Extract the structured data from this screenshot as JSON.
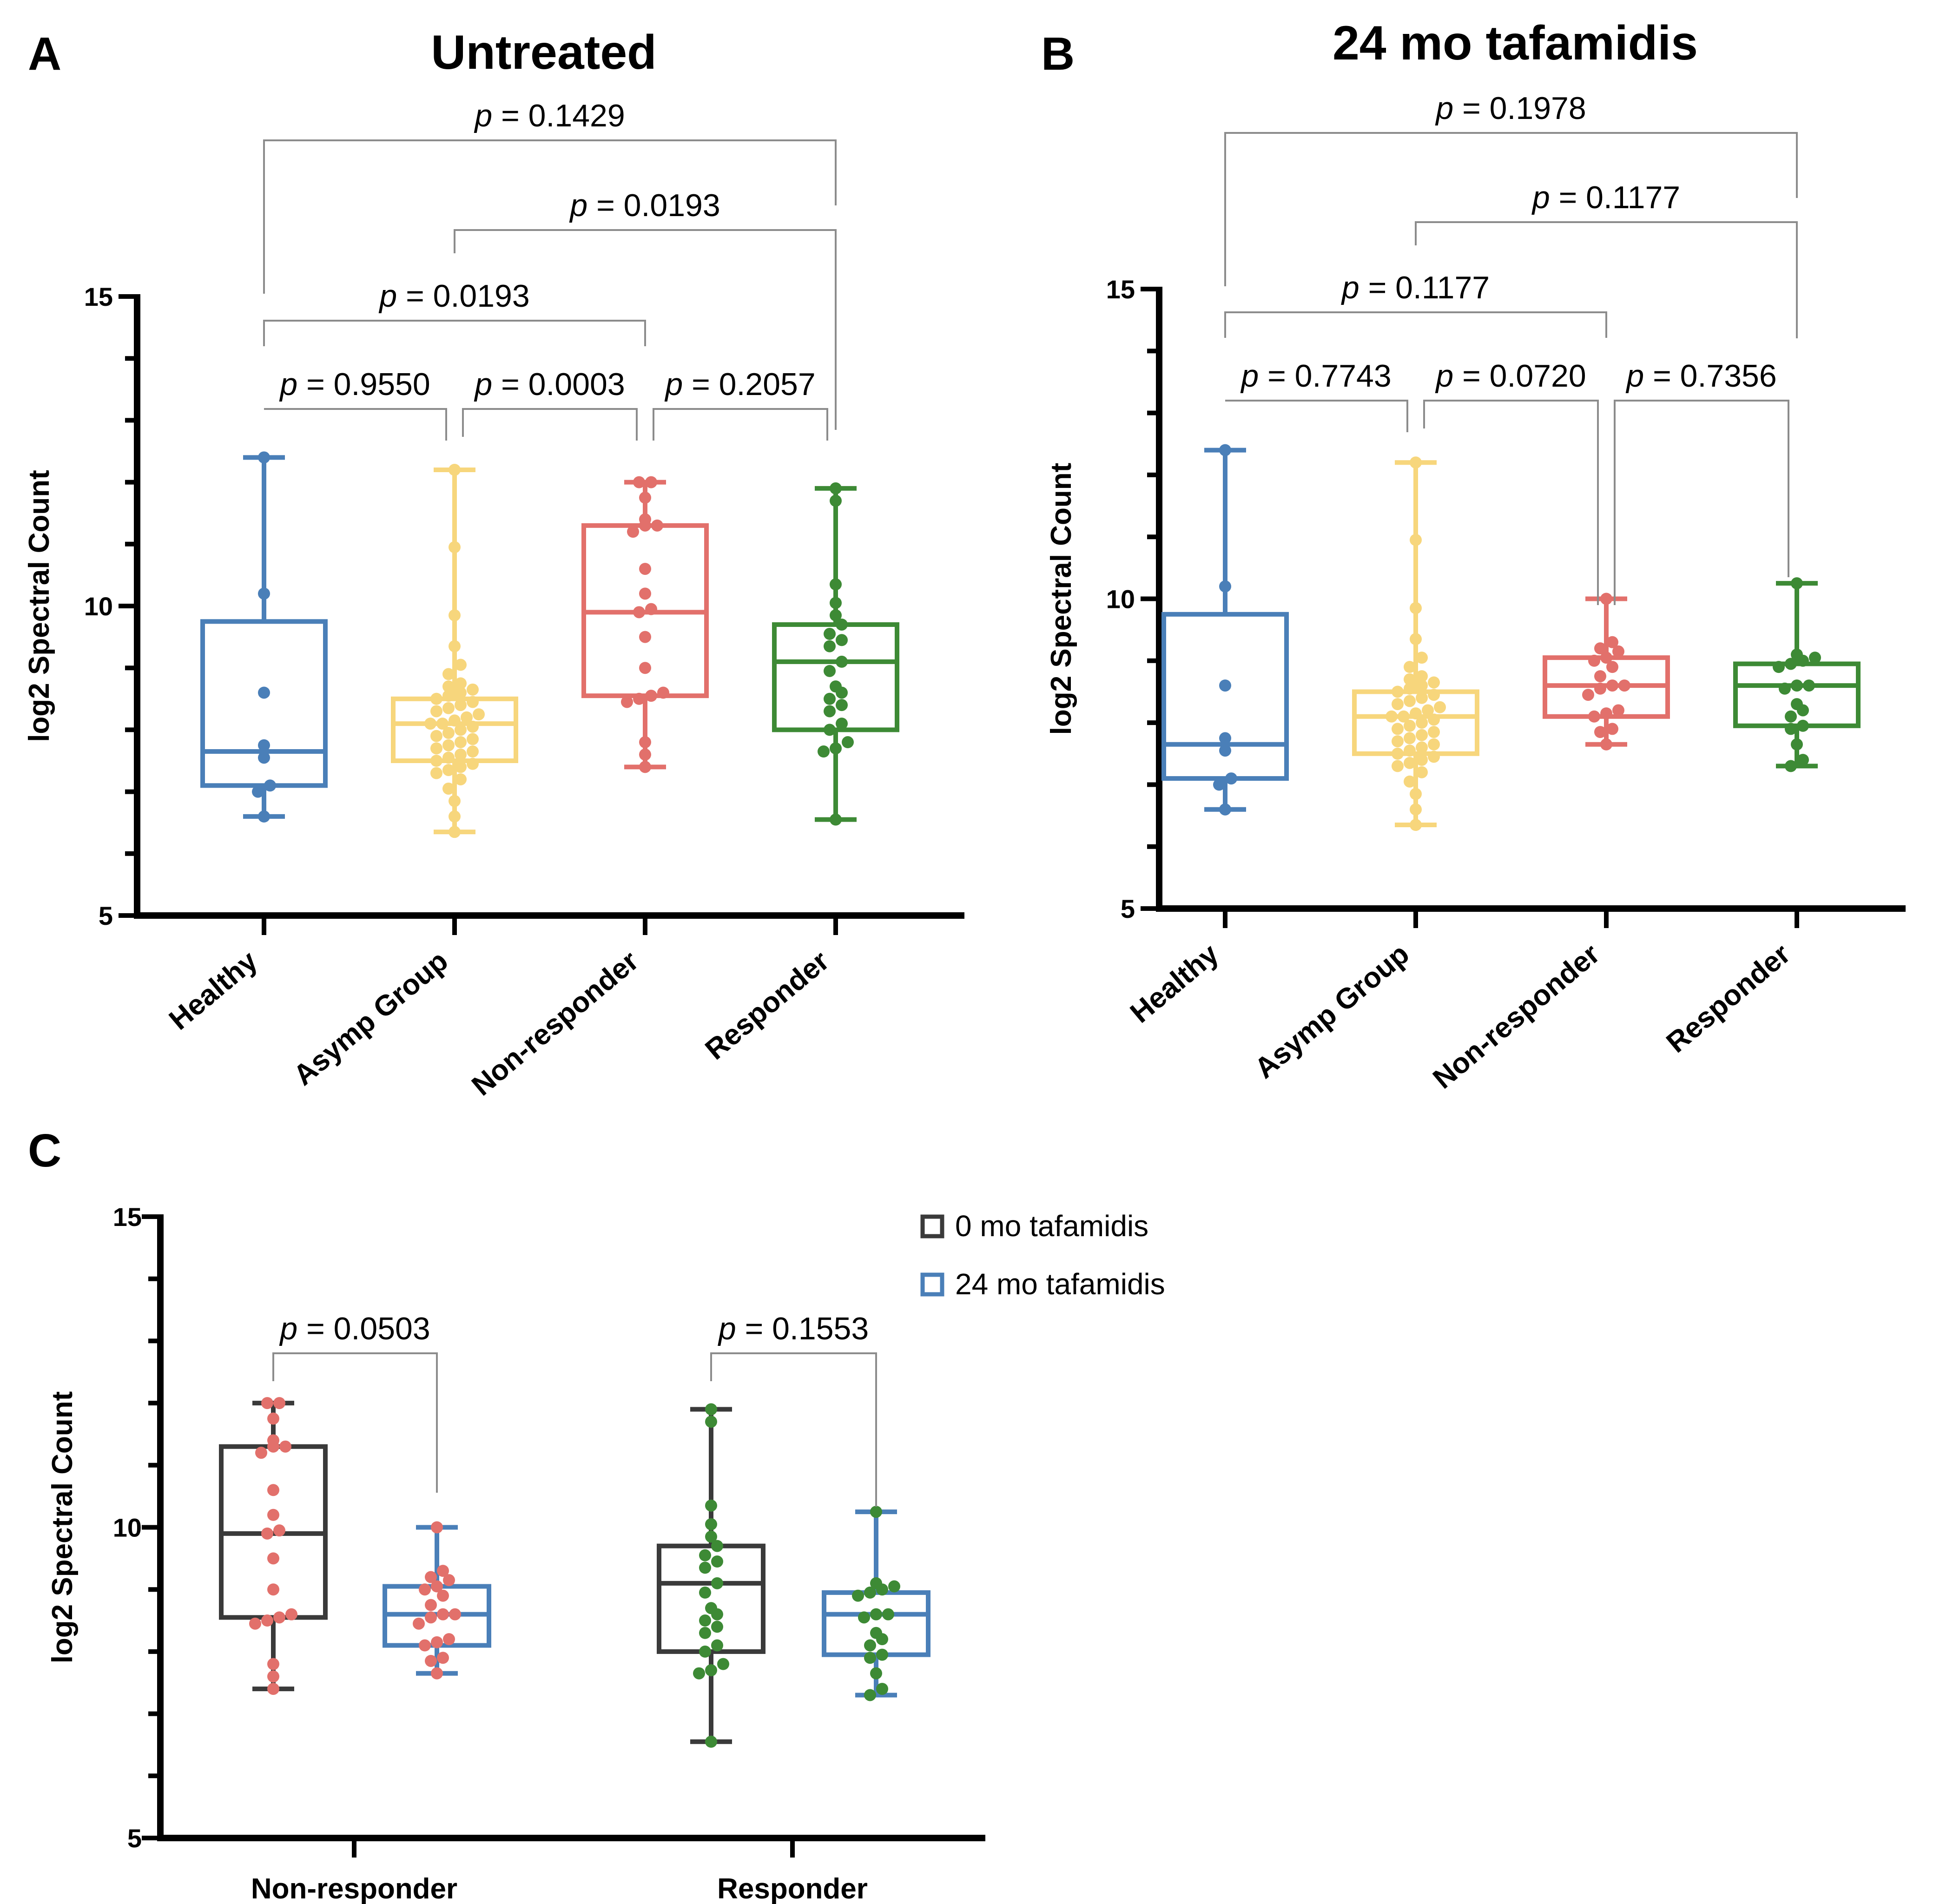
{
  "figure": {
    "panel_labels": [
      "A",
      "B",
      "C"
    ]
  },
  "colors": {
    "healthy": "#4a7fb8",
    "asymp": "#f7d67c",
    "nonresponder": "#e2706b",
    "responder": "#3d8a35",
    "dark": "#3a3a3a",
    "axis": "#000000",
    "bracket": "#8c8c8c"
  },
  "chart_data": [
    {
      "id": "A",
      "type": "box",
      "title": "Untreated",
      "ylabel": "log2 Spectral Count",
      "ylim": [
        5,
        15
      ],
      "yticks": [
        5,
        10,
        15
      ],
      "categories": [
        "Healthy",
        "Asymp Group",
        "Non-responder",
        "Responder"
      ],
      "series": [
        {
          "name": "Healthy",
          "color": "healthy",
          "min": 6.6,
          "q1": 7.1,
          "median": 7.65,
          "q3": 9.75,
          "max": 12.4,
          "points": [
            12.4,
            10.2,
            8.6,
            7.75,
            7.55,
            7.1,
            7.0,
            6.6
          ]
        },
        {
          "name": "Asymp Group",
          "color": "asymp",
          "min": 6.35,
          "q1": 7.5,
          "median": 8.1,
          "q3": 8.5,
          "max": 12.2,
          "points": [
            12.2,
            10.95,
            9.85,
            9.35,
            9.05,
            8.9,
            8.75,
            8.7,
            8.65,
            8.6,
            8.55,
            8.5,
            8.45,
            8.4,
            8.35,
            8.3,
            8.25,
            8.2,
            8.15,
            8.1,
            8.1,
            8.05,
            8.0,
            7.95,
            7.9,
            7.85,
            7.8,
            7.75,
            7.7,
            7.65,
            7.6,
            7.55,
            7.5,
            7.45,
            7.4,
            7.35,
            7.3,
            7.2,
            7.05,
            6.85,
            6.6,
            6.35
          ]
        },
        {
          "name": "Non-responder",
          "color": "nonresponder",
          "min": 7.4,
          "q1": 8.55,
          "median": 9.9,
          "q3": 11.3,
          "max": 12.0,
          "points": [
            12.0,
            12.0,
            11.75,
            11.4,
            11.3,
            11.3,
            11.2,
            10.6,
            10.2,
            9.95,
            9.9,
            9.5,
            9.0,
            8.6,
            8.55,
            8.5,
            8.45,
            7.8,
            7.6,
            7.4
          ]
        },
        {
          "name": "Responder",
          "color": "responder",
          "min": 6.55,
          "q1": 8.0,
          "median": 9.1,
          "q3": 9.7,
          "max": 11.9,
          "points": [
            11.9,
            11.7,
            10.35,
            10.05,
            9.85,
            9.7,
            9.55,
            9.45,
            9.35,
            9.1,
            8.95,
            8.7,
            8.6,
            8.5,
            8.4,
            8.3,
            8.1,
            8.0,
            7.8,
            7.7,
            7.65,
            6.55
          ]
        }
      ],
      "comparisons": [
        {
          "from": 0,
          "to": 1,
          "label": "p = 0.9550",
          "level": 0
        },
        {
          "from": 1,
          "to": 2,
          "label": "p = 0.0003",
          "level": 0
        },
        {
          "from": 2,
          "to": 3,
          "label": "p = 0.2057",
          "level": 0
        },
        {
          "from": 0,
          "to": 2,
          "label": "p = 0.0193",
          "level": 1
        },
        {
          "from": 1,
          "to": 3,
          "label": "p = 0.0193",
          "level": 2
        },
        {
          "from": 0,
          "to": 3,
          "label": "p = 0.1429",
          "level": 3
        }
      ]
    },
    {
      "id": "B",
      "type": "box",
      "title": "24 mo tafamidis",
      "ylabel": "log2 Spectral Count",
      "ylim": [
        5,
        15
      ],
      "yticks": [
        5,
        10,
        15
      ],
      "categories": [
        "Healthy",
        "Asymp Group",
        "Non-responder",
        "Responder"
      ],
      "series": [
        {
          "name": "Healthy",
          "color": "healthy",
          "min": 6.6,
          "q1": 7.1,
          "median": 7.65,
          "q3": 9.75,
          "max": 12.4,
          "points": [
            12.4,
            10.2,
            8.6,
            7.75,
            7.55,
            7.1,
            7.0,
            6.6
          ]
        },
        {
          "name": "Asymp Group",
          "color": "asymp",
          "min": 6.35,
          "q1": 7.5,
          "median": 8.1,
          "q3": 8.5,
          "max": 12.2,
          "points": [
            12.2,
            10.95,
            9.85,
            9.35,
            9.05,
            8.9,
            8.75,
            8.7,
            8.65,
            8.6,
            8.55,
            8.5,
            8.45,
            8.4,
            8.35,
            8.3,
            8.25,
            8.2,
            8.15,
            8.1,
            8.1,
            8.05,
            8.0,
            7.95,
            7.9,
            7.85,
            7.8,
            7.75,
            7.7,
            7.65,
            7.6,
            7.55,
            7.5,
            7.45,
            7.4,
            7.35,
            7.3,
            7.2,
            7.05,
            6.85,
            6.6,
            6.35
          ]
        },
        {
          "name": "Non-responder",
          "color": "nonresponder",
          "min": 7.65,
          "q1": 8.1,
          "median": 8.6,
          "q3": 9.05,
          "max": 10.0,
          "points": [
            10.0,
            9.3,
            9.2,
            9.15,
            9.05,
            9.0,
            8.9,
            8.75,
            8.6,
            8.6,
            8.55,
            8.45,
            8.2,
            8.15,
            8.1,
            7.9,
            7.85,
            7.65
          ]
        },
        {
          "name": "Responder",
          "color": "responder",
          "min": 7.3,
          "q1": 7.95,
          "median": 8.6,
          "q3": 8.95,
          "max": 10.25,
          "points": [
            10.25,
            9.1,
            9.05,
            9.0,
            8.95,
            8.9,
            8.6,
            8.6,
            8.55,
            8.3,
            8.2,
            8.1,
            7.95,
            7.9,
            7.65,
            7.4,
            7.3
          ]
        }
      ],
      "comparisons": [
        {
          "from": 0,
          "to": 1,
          "label": "p = 0.7743",
          "level": 0
        },
        {
          "from": 1,
          "to": 2,
          "label": "p = 0.0720",
          "level": 0
        },
        {
          "from": 2,
          "to": 3,
          "label": "p = 0.7356",
          "level": 0
        },
        {
          "from": 0,
          "to": 2,
          "label": "p = 0.1177",
          "level": 1
        },
        {
          "from": 1,
          "to": 3,
          "label": "p = 0.1177",
          "level": 2
        },
        {
          "from": 0,
          "to": 3,
          "label": "p = 0.1978",
          "level": 3
        }
      ]
    },
    {
      "id": "C",
      "type": "box",
      "title": "",
      "ylabel": "log2 Spectral Count",
      "ylim": [
        5,
        15
      ],
      "yticks": [
        5,
        10,
        15
      ],
      "categories": [
        "Non-responder",
        "Responder"
      ],
      "legend": [
        {
          "label": "0 mo tafamidis",
          "color": "dark"
        },
        {
          "label": "24 mo tafamidis",
          "color": "healthy"
        }
      ],
      "groups": [
        {
          "category": "Non-responder",
          "boxes": [
            {
              "name": "0 mo tafamidis",
              "box_color": "dark",
              "dot_color": "nonresponder",
              "min": 7.4,
              "q1": 8.55,
              "median": 9.9,
              "q3": 11.3,
              "max": 12.0,
              "points": [
                12.0,
                12.0,
                11.75,
                11.4,
                11.3,
                11.3,
                11.2,
                10.6,
                10.2,
                9.95,
                9.9,
                9.5,
                9.0,
                8.6,
                8.55,
                8.5,
                8.45,
                7.8,
                7.6,
                7.4
              ]
            },
            {
              "name": "24 mo tafamidis",
              "box_color": "healthy",
              "dot_color": "nonresponder",
              "min": 7.65,
              "q1": 8.1,
              "median": 8.6,
              "q3": 9.05,
              "max": 10.0,
              "points": [
                10.0,
                9.3,
                9.2,
                9.15,
                9.05,
                9.0,
                8.9,
                8.75,
                8.6,
                8.6,
                8.55,
                8.45,
                8.2,
                8.15,
                8.1,
                7.9,
                7.85,
                7.65
              ]
            }
          ],
          "comparison": "p = 0.0503"
        },
        {
          "category": "Responder",
          "boxes": [
            {
              "name": "0 mo tafamidis",
              "box_color": "dark",
              "dot_color": "responder",
              "min": 6.55,
              "q1": 8.0,
              "median": 9.1,
              "q3": 9.7,
              "max": 11.9,
              "points": [
                11.9,
                11.7,
                10.35,
                10.05,
                9.85,
                9.7,
                9.55,
                9.45,
                9.35,
                9.1,
                8.95,
                8.7,
                8.6,
                8.5,
                8.4,
                8.3,
                8.1,
                8.0,
                7.8,
                7.7,
                7.65,
                6.55
              ]
            },
            {
              "name": "24 mo tafamidis",
              "box_color": "healthy",
              "dot_color": "responder",
              "min": 7.3,
              "q1": 7.95,
              "median": 8.6,
              "q3": 8.95,
              "max": 10.25,
              "points": [
                10.25,
                9.1,
                9.05,
                9.0,
                8.95,
                8.9,
                8.6,
                8.6,
                8.55,
                8.3,
                8.2,
                8.1,
                7.95,
                7.9,
                7.65,
                7.4,
                7.3
              ]
            }
          ],
          "comparison": "p = 0.1553"
        }
      ]
    }
  ]
}
